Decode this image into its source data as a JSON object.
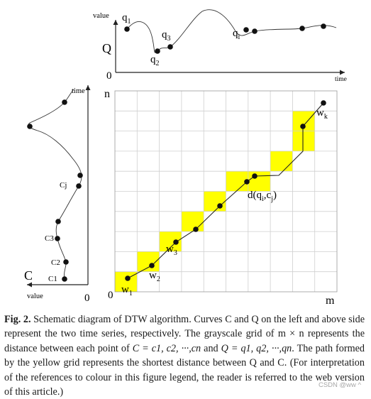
{
  "figure": {
    "top_plot": {
      "y_axis_label": "value",
      "x_axis_label": "time",
      "series_label": "Q",
      "origin_label": "0",
      "point_labels": [
        {
          "key": "q",
          "sub": "1"
        },
        {
          "key": "q",
          "sub": "2"
        },
        {
          "key": "q",
          "sub": "3"
        },
        {
          "key": "q",
          "sub": "i"
        }
      ]
    },
    "left_plot": {
      "time_label": "time",
      "value_label": "value",
      "series_label": "C",
      "origin_label": "0",
      "point_labels": [
        "Cj",
        "C3",
        "C2",
        "C1"
      ]
    },
    "grid": {
      "rows_label": "n",
      "cols_label": "m",
      "origin_label": "0",
      "cells": 10,
      "path_cells": [
        [
          0,
          0
        ],
        [
          1,
          1
        ],
        [
          2,
          2
        ],
        [
          3,
          3
        ],
        [
          4,
          4
        ],
        [
          5,
          5
        ],
        [
          6,
          5
        ],
        [
          7,
          6
        ],
        [
          8,
          7
        ],
        [
          8,
          8
        ]
      ],
      "cell_colors": {
        "path": "#ffff00",
        "grid": "#ffffff",
        "line": "#cfcfcf"
      },
      "labels": {
        "w1": {
          "key": "w",
          "sub": "1"
        },
        "w2": {
          "key": "w",
          "sub": "2"
        },
        "w3": {
          "key": "w",
          "sub": "3"
        },
        "wk": {
          "key": "w",
          "sub": "k"
        },
        "dist": {
          "prefix": "d(q",
          "sub1": "i",
          "mid": ",c",
          "sub2": "j",
          "suffix": ")"
        }
      }
    }
  },
  "caption": {
    "label": "Fig. 2.",
    "p1": " Schematic diagram of DTW algorithm. Curves C and Q on the left and above side represent the two time series, respectively. The grayscale grid of m × n represents the distance between each point of ",
    "eq1": "C = c1, c2, ···,cn",
    "p2": " and ",
    "eq2": "Q = q1, q2, ···,qn",
    "p3": ". The path formed by the yellow grid represents the shortest distance between Q and C. (For interpretation of the references to colour in this figure legend, the reader is referred to the web version of this article.)"
  },
  "watermark": "CSDN @ww ^"
}
